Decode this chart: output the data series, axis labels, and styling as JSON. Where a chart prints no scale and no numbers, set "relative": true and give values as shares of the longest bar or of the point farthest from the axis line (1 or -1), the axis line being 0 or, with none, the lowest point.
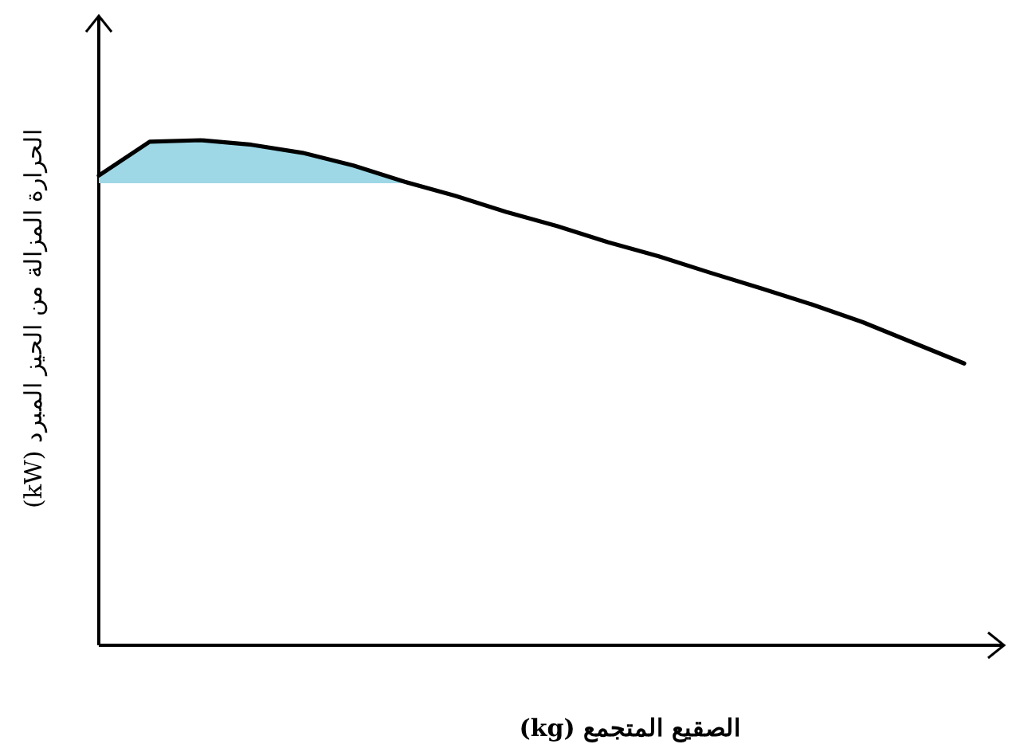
{
  "chart_data": {
    "type": "line",
    "relative": true,
    "xlabel": "الصقيع المتجمع (kg)",
    "ylabel": "الحرارة المزالة من الحيز المبرد (kW)",
    "categories": [
      null,
      null,
      null,
      null,
      null,
      null,
      null,
      null,
      null,
      null,
      null,
      null,
      null,
      null,
      null,
      null,
      null,
      null
    ],
    "marker": "none",
    "line_style": "solid",
    "series": [
      {
        "color": "#000000",
        "values": [
          0.93,
          0.997,
          1,
          0.991,
          0.975,
          0.95,
          0.918,
          0.89,
          0.858,
          0.83,
          0.798,
          0.77,
          0.738,
          0.707,
          0.675,
          0.64,
          0.599,
          0.558
        ],
        "lower": [
          0.915,
          0.915,
          0.915,
          0.915,
          0.915,
          0.915,
          0.915,
          null,
          null,
          null,
          null,
          null,
          null,
          null,
          null,
          null,
          null,
          null
        ],
        "upper": [
          0.93,
          0.997,
          1,
          0.991,
          0.975,
          0.95,
          0.918,
          null,
          null,
          null,
          null,
          null,
          null,
          null,
          null,
          null,
          null,
          null
        ]
      }
    ]
  }
}
